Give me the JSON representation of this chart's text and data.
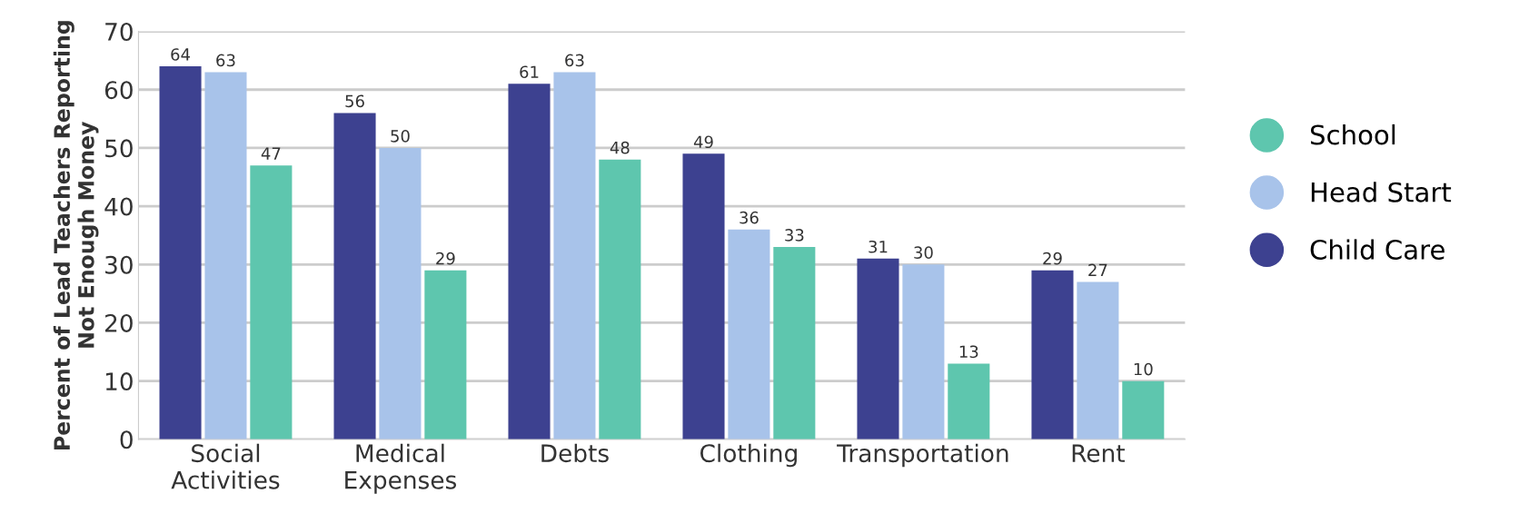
{
  "chart_data": {
    "type": "bar",
    "ylabel": "Percent of Lead Teachers Reporting\nNot Enough Money",
    "categories": [
      "Social\nActivities",
      "Medical\nExpenses",
      "Debts",
      "Clothing",
      "Transportation",
      "Rent"
    ],
    "series": [
      {
        "name": "Child Care",
        "color": "#3d4190",
        "values": [
          64,
          56,
          61,
          49,
          31,
          29
        ]
      },
      {
        "name": "Head Start",
        "color": "#a8c3ea",
        "values": [
          63,
          50,
          63,
          36,
          30,
          27
        ]
      },
      {
        "name": "School",
        "color": "#5ec6ae",
        "values": [
          47,
          29,
          48,
          33,
          13,
          10
        ]
      }
    ],
    "ylim": [
      0,
      70
    ],
    "yticks": [
      0,
      10,
      20,
      30,
      40,
      50,
      60,
      70
    ],
    "grid": "y",
    "legend": "right",
    "data_labels": true
  }
}
